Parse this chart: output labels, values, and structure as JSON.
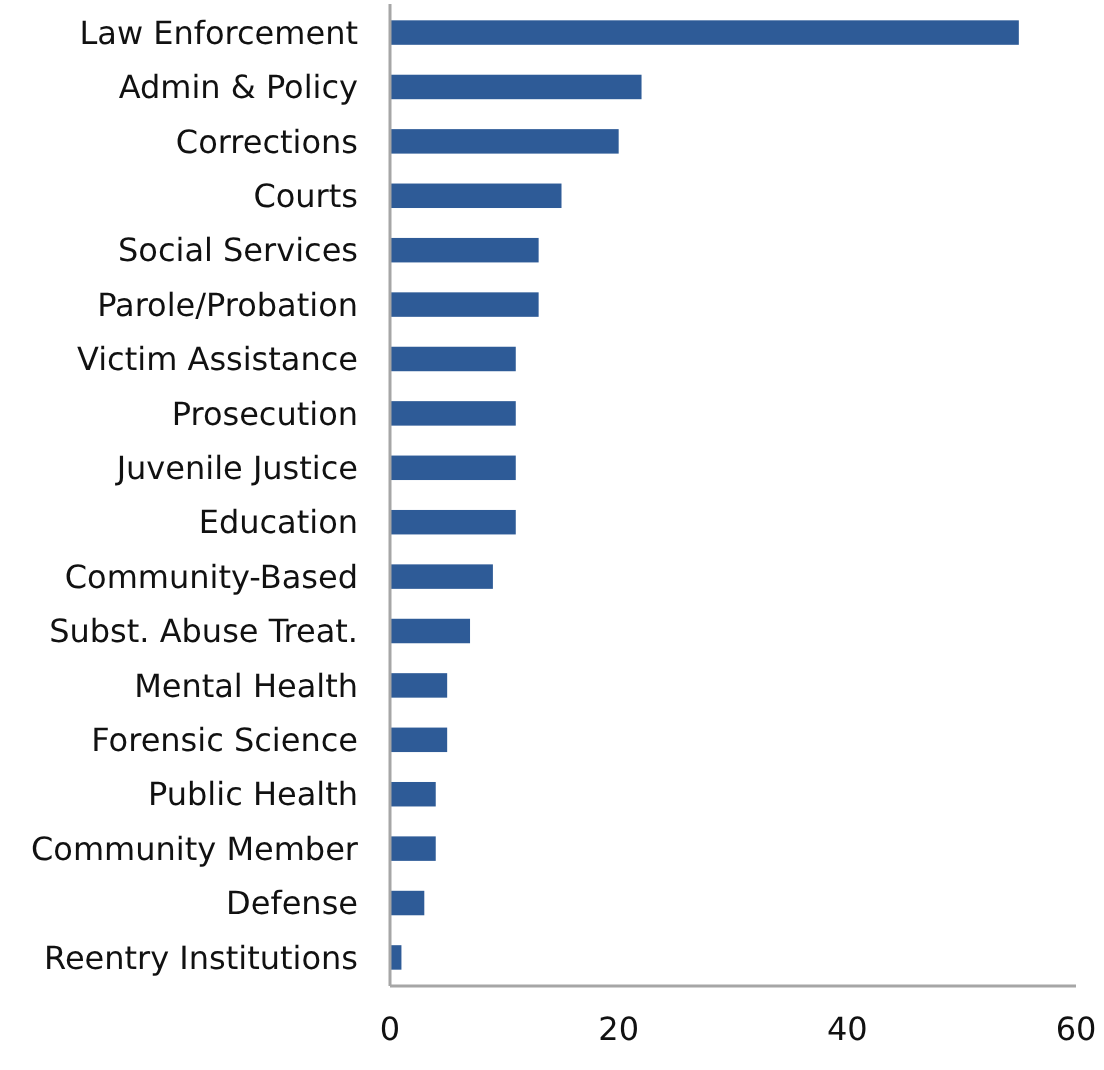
{
  "chart_data": {
    "type": "bar",
    "orientation": "horizontal",
    "categories": [
      "Law Enforcement",
      "Admin & Policy",
      "Corrections",
      "Courts",
      "Social Services ",
      "Parole/Probation",
      "Victim Assistance",
      "Prosecution",
      "Juvenile Justice",
      "Education",
      "Community-Based",
      "Subst. Abuse Treat.",
      "Mental Health",
      "Forensic Science",
      "Public Health ",
      "Community Member",
      "Defense",
      "Reentry Institutions"
    ],
    "values": [
      55,
      22,
      20,
      15,
      13,
      13,
      11,
      11,
      11,
      11,
      9,
      7,
      5,
      5,
      4,
      4,
      3,
      1
    ],
    "color": "#2e5b97",
    "xlim": [
      0,
      60
    ],
    "xticks": [
      0,
      20,
      40,
      60
    ],
    "grid": false
  }
}
